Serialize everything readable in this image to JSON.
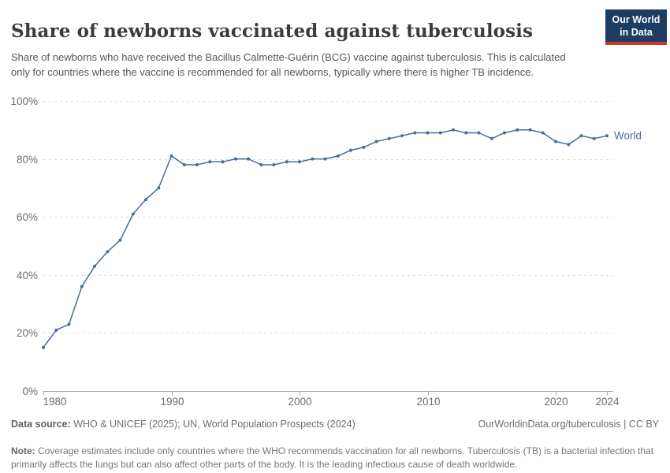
{
  "header": {
    "title": "Share of newborns vaccinated against tuberculosis",
    "subtitle": "Share of newborns who have received the Bacillus Calmette-Guérin (BCG) vaccine against tuberculosis. This is calculated only for countries where the vaccine is recommended for all newborns, typically where there is higher TB incidence.",
    "logo_line1": "Our World",
    "logo_line2": "in Data"
  },
  "chart_data": {
    "type": "line",
    "title": "Share of newborns vaccinated against tuberculosis",
    "x": [
      1980,
      1981,
      1982,
      1983,
      1984,
      1985,
      1986,
      1987,
      1988,
      1989,
      1990,
      1991,
      1992,
      1993,
      1994,
      1995,
      1996,
      1997,
      1998,
      1999,
      2000,
      2001,
      2002,
      2003,
      2004,
      2005,
      2006,
      2007,
      2008,
      2009,
      2010,
      2011,
      2012,
      2013,
      2014,
      2015,
      2016,
      2017,
      2018,
      2019,
      2020,
      2021,
      2022,
      2023,
      2024
    ],
    "series": [
      {
        "name": "World",
        "color": "#4c6a9c",
        "values": [
          15,
          21,
          23,
          36,
          43,
          48,
          52,
          61,
          66,
          70,
          81,
          78,
          78,
          79,
          79,
          80,
          80,
          78,
          78,
          79,
          79,
          80,
          80,
          81,
          83,
          84,
          86,
          87,
          88,
          89,
          89,
          89,
          90,
          89,
          89,
          87,
          89,
          90,
          90,
          89,
          86,
          85,
          88,
          87,
          88
        ]
      }
    ],
    "x_ticks": [
      1980,
      1990,
      2000,
      2010,
      2020,
      2024
    ],
    "y_ticks": [
      0,
      20,
      40,
      60,
      80,
      100
    ],
    "y_tick_suffix": "%",
    "xlim": [
      1980,
      2024
    ],
    "ylim": [
      0,
      100
    ],
    "grid": "horizontal-dashed",
    "legend": "line-end-label",
    "xlabel": "",
    "ylabel": ""
  },
  "colors": {
    "line": "#4c6a9c",
    "grid": "#dcdcdc",
    "axis": "#a8a8a8",
    "tick_text": "#6e6e6e",
    "logo_bg": "#1d3d63",
    "logo_accent": "#c9342c"
  },
  "footer": {
    "datasource_label": "Data source:",
    "datasource_text": " WHO & UNICEF (2025); UN, World Population Prospects (2024)",
    "link": "OurWorldinData.org/tuberculosis | CC BY",
    "note_label": "Note:",
    "note_text": " Coverage estimates include only countries where the WHO recommends vaccination for all newborns. Tuberculosis (TB) is a bacterial infection that primarily affects the lungs but can also affect other parts of the body. It is the leading infectious cause of death worldwide."
  }
}
